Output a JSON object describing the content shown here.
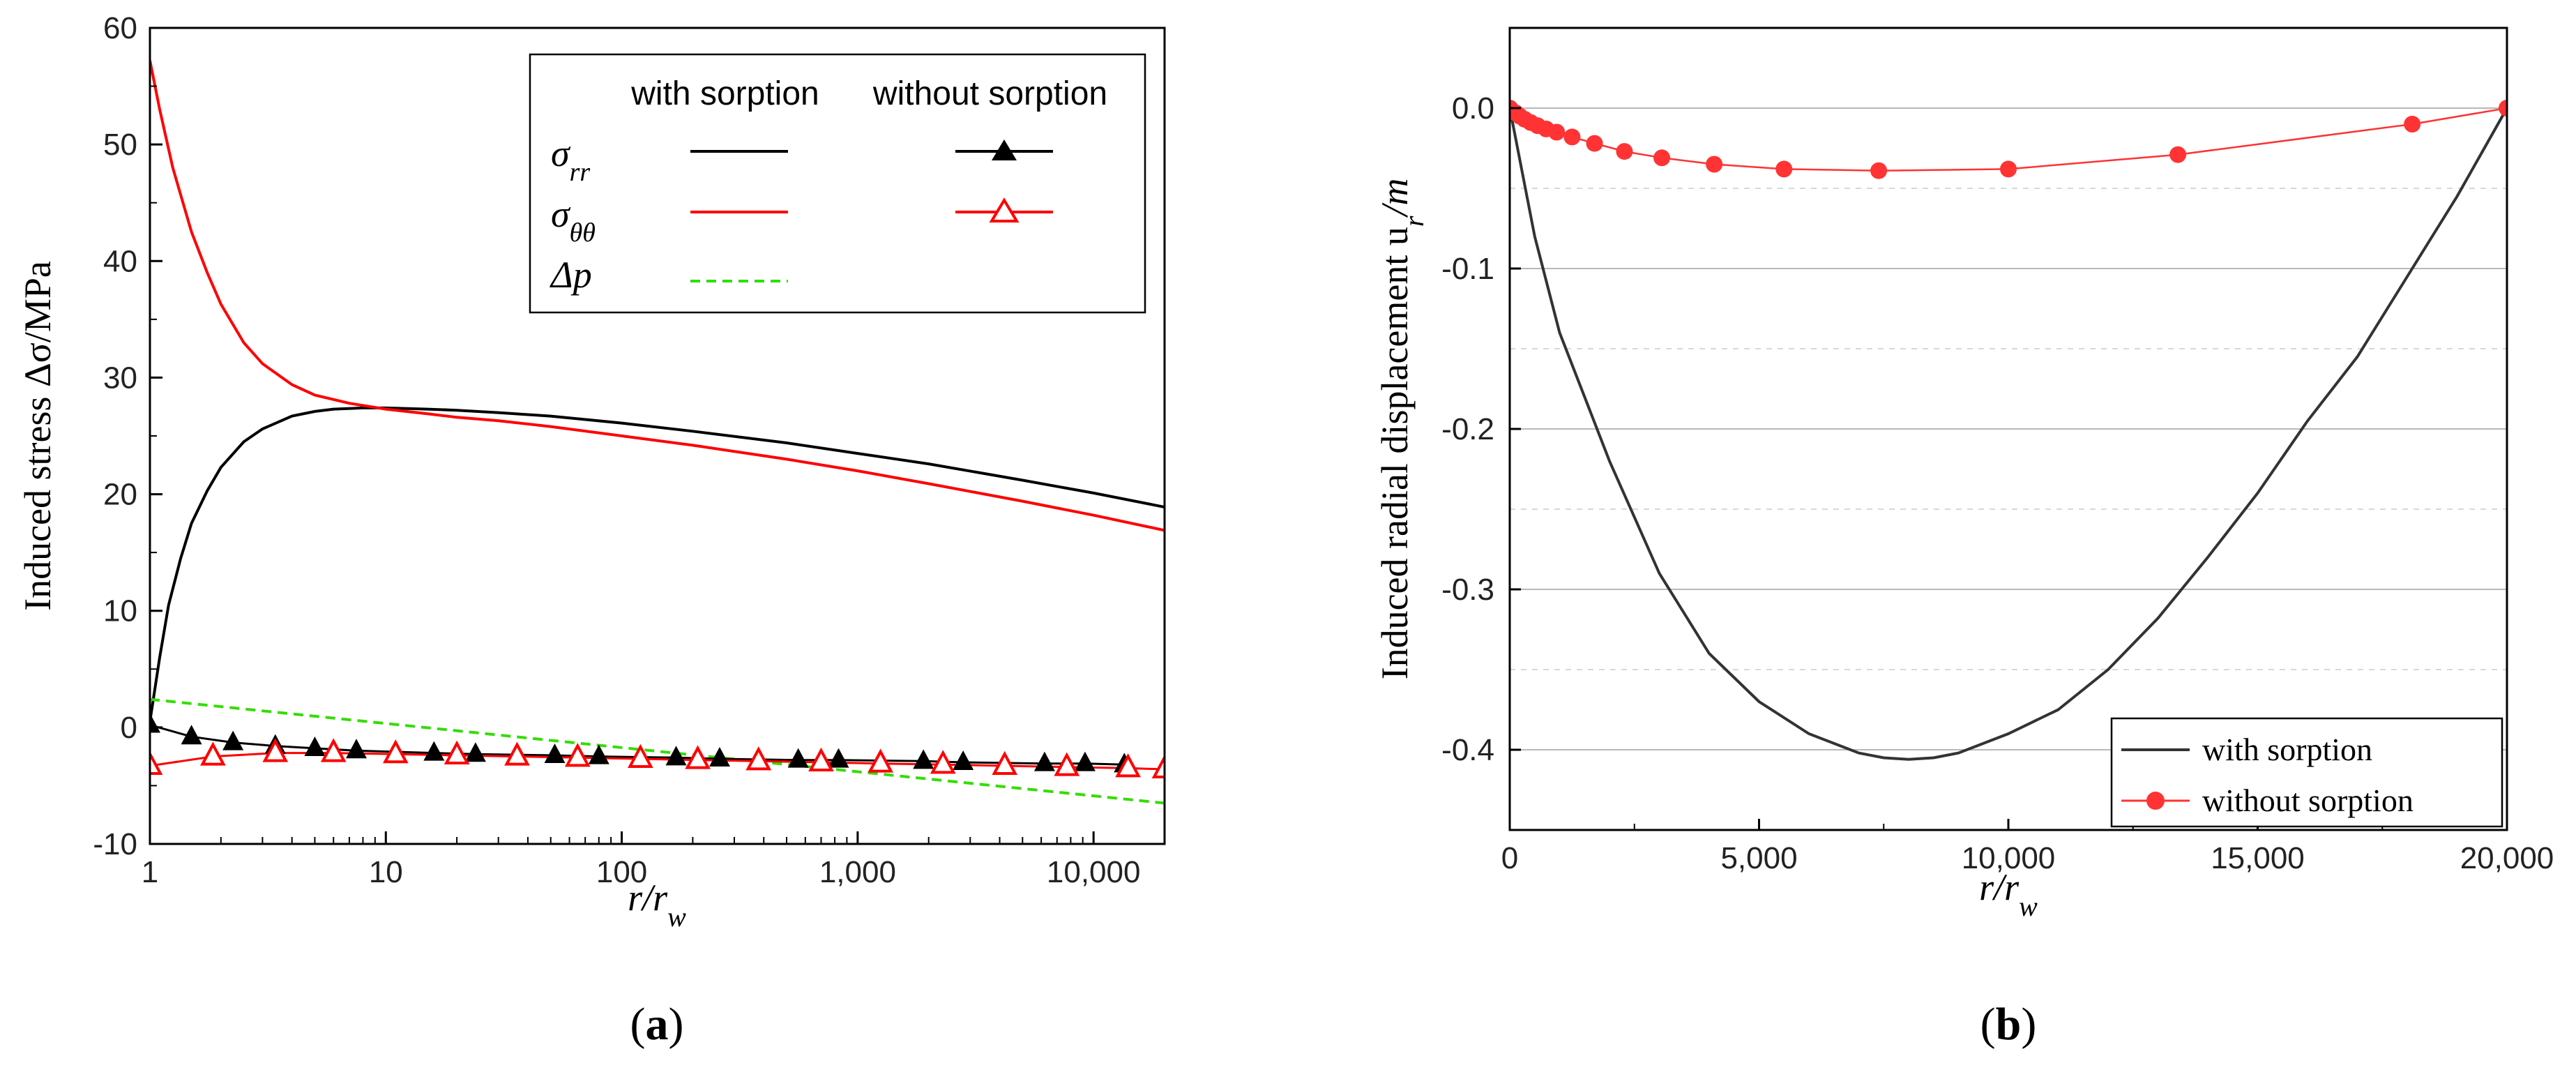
{
  "chart_data": [
    {
      "id": "a",
      "type": "line",
      "xscale": "log",
      "xlim": [
        1,
        20000
      ],
      "ylim": [
        -10,
        60
      ],
      "xticks": [
        1,
        10,
        100,
        1000,
        10000
      ],
      "xtick_labels": [
        "1",
        "10",
        "100",
        "1,000",
        "10,000"
      ],
      "yticks": [
        -10,
        0,
        10,
        20,
        30,
        40,
        50,
        60
      ],
      "ytick_labels": [
        "-10",
        "0",
        "10",
        "20",
        "30",
        "40",
        "50",
        "60"
      ],
      "ylabel": "Induced stress Δσ/MPa",
      "xlabel": {
        "main": "r/r",
        "sub": "w"
      },
      "caption": {
        "open": "(",
        "letter": "a",
        "close": ")"
      },
      "legend": {
        "header_with": "with sorption",
        "header_without": "without sorption",
        "rows": [
          {
            "symbol": "σ",
            "sub": "rr"
          },
          {
            "symbol": "σ",
            "sub": "θθ"
          },
          {
            "symbol": "Δp",
            "sub": ""
          }
        ]
      },
      "series": [
        {
          "name": "σrr with sorption",
          "color": "#000000",
          "style": "solid",
          "marker": "none",
          "x": [
            1,
            1.1,
            1.2,
            1.35,
            1.5,
            1.75,
            2,
            2.5,
            3,
            4,
            5,
            6,
            8,
            10,
            15,
            20,
            30,
            50,
            100,
            200,
            500,
            1000,
            2000,
            5000,
            10000,
            20000
          ],
          "y": [
            0.5,
            6,
            10.5,
            14.5,
            17.5,
            20.3,
            22.3,
            24.5,
            25.6,
            26.7,
            27.1,
            27.3,
            27.4,
            27.4,
            27.3,
            27.2,
            27.0,
            26.7,
            26.1,
            25.4,
            24.4,
            23.5,
            22.6,
            21.2,
            20.1,
            18.9
          ]
        },
        {
          "name": "σθθ with sorption",
          "color": "#ff0000",
          "style": "solid",
          "marker": "none",
          "x": [
            1,
            1.1,
            1.25,
            1.5,
            1.75,
            2,
            2.5,
            3,
            4,
            5,
            7,
            10,
            15,
            20,
            30,
            50,
            100,
            200,
            500,
            1000,
            2000,
            5000,
            10000,
            20000
          ],
          "y": [
            57.2,
            53,
            48,
            42.5,
            39,
            36.3,
            33,
            31.2,
            29.4,
            28.5,
            27.8,
            27.3,
            26.9,
            26.6,
            26.3,
            25.8,
            25.0,
            24.2,
            23.0,
            22.0,
            20.9,
            19.4,
            18.2,
            16.9
          ]
        },
        {
          "name": "Δp",
          "color": "#33dd00",
          "style": "dashed",
          "marker": "none",
          "x": [
            1,
            20000
          ],
          "y": [
            2.4,
            -6.5
          ]
        },
        {
          "name": "σrr without sorption",
          "color": "#000000",
          "style": "solid",
          "marker": "filled-triangle",
          "x": [
            1,
            1.5,
            2.25,
            3.4,
            5,
            7.5,
            16,
            24,
            52,
            80,
            170,
            260,
            560,
            830,
            1900,
            2800,
            6200,
            9200,
            13500
          ],
          "y": [
            0.2,
            -0.8,
            -1.3,
            -1.6,
            -1.8,
            -2.0,
            -2.2,
            -2.3,
            -2.4,
            -2.5,
            -2.6,
            -2.7,
            -2.8,
            -2.8,
            -2.9,
            -3.0,
            -3.1,
            -3.1,
            -3.2
          ]
        },
        {
          "name": "σθθ without sorption",
          "color": "#ff0000",
          "style": "solid",
          "marker": "open-triangle",
          "x": [
            1,
            1.85,
            3.4,
            6,
            11,
            20,
            36,
            65,
            120,
            210,
            380,
            700,
            1250,
            2300,
            4200,
            7700,
            14000,
            20000
          ],
          "y": [
            -3.3,
            -2.5,
            -2.2,
            -2.2,
            -2.3,
            -2.4,
            -2.5,
            -2.6,
            -2.7,
            -2.8,
            -2.9,
            -3.0,
            -3.1,
            -3.2,
            -3.3,
            -3.4,
            -3.5,
            -3.6
          ]
        }
      ]
    },
    {
      "id": "b",
      "type": "line",
      "xscale": "linear",
      "xlim": [
        0,
        20000
      ],
      "ylim": [
        -0.45,
        0.05
      ],
      "xticks": [
        0,
        5000,
        10000,
        15000,
        20000
      ],
      "xtick_labels": [
        "0",
        "5,000",
        "10,000",
        "15,000",
        "20,000"
      ],
      "yticks": [
        -0.4,
        -0.3,
        -0.2,
        -0.1,
        0.0
      ],
      "ytick_labels": [
        "-0.4",
        "-0.3",
        "-0.2",
        "-0.1",
        "0.0"
      ],
      "ylabel": {
        "main": "Induced radial displacement u",
        "sub": "r",
        "tail": "/m"
      },
      "xlabel": {
        "main": "r/r",
        "sub": "w"
      },
      "caption": {
        "open": "(",
        "letter": "b",
        "close": ")"
      },
      "legend": [
        "with sorption",
        "without sorption"
      ],
      "series": [
        {
          "name": "with sorption",
          "color": "#333333",
          "marker": "none",
          "x": [
            0,
            500,
            1000,
            1500,
            2000,
            3000,
            4000,
            5000,
            6000,
            7000,
            7500,
            8000,
            8500,
            9000,
            10000,
            11000,
            12000,
            13000,
            14000,
            15000,
            16000,
            17000,
            18000,
            19000,
            20000
          ],
          "y": [
            0,
            -0.08,
            -0.14,
            -0.18,
            -0.22,
            -0.29,
            -0.34,
            -0.37,
            -0.39,
            -0.402,
            -0.405,
            -0.406,
            -0.405,
            -0.402,
            -0.39,
            -0.375,
            -0.35,
            -0.318,
            -0.28,
            -0.24,
            -0.195,
            -0.155,
            -0.105,
            -0.055,
            0
          ]
        },
        {
          "name": "without sorption",
          "color": "#ff3333",
          "marker": "filled-circle",
          "x": [
            0,
            60,
            120,
            200,
            300,
            420,
            560,
            730,
            940,
            1250,
            1700,
            2300,
            3050,
            4100,
            5500,
            7400,
            10000,
            13400,
            18100,
            20000
          ],
          "y": [
            0,
            -0.002,
            -0.003,
            -0.005,
            -0.007,
            -0.009,
            -0.011,
            -0.013,
            -0.015,
            -0.018,
            -0.022,
            -0.027,
            -0.031,
            -0.035,
            -0.038,
            -0.039,
            -0.038,
            -0.029,
            -0.01,
            0
          ]
        }
      ]
    }
  ]
}
